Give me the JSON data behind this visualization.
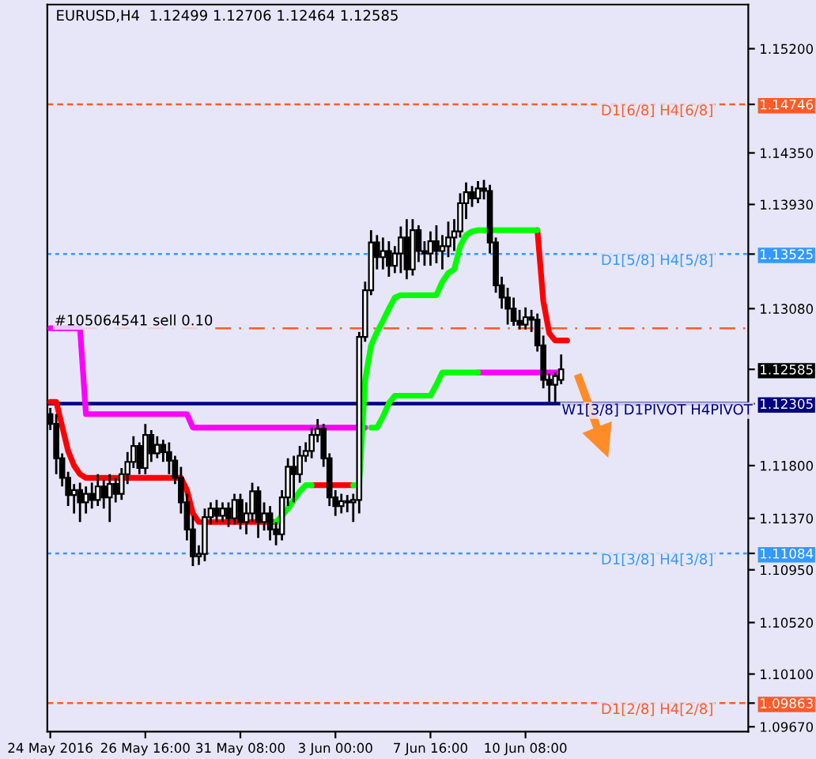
{
  "chart_data": {
    "type": "candlestick",
    "title": "EURUSD,H4  1.12499 1.12706 1.12464 1.12585",
    "categories": [
      "24 May 2016",
      null,
      null,
      null,
      null,
      null,
      null,
      null,
      null,
      null,
      null,
      null,
      null,
      null,
      null,
      null,
      "26 May 16:00",
      null,
      null,
      null,
      null,
      null,
      null,
      null,
      null,
      null,
      null,
      null,
      null,
      null,
      null,
      null,
      "31 May 08:00",
      null,
      null,
      null,
      null,
      null,
      null,
      null,
      null,
      null,
      null,
      null,
      null,
      null,
      null,
      null,
      "3 Jun 00:00",
      null,
      null,
      null,
      null,
      null,
      null,
      null,
      null,
      null,
      null,
      null,
      null,
      null,
      null,
      null,
      "7 Jun 16:00",
      null,
      null,
      null,
      null,
      null,
      null,
      null,
      null,
      null,
      null,
      null,
      null,
      null,
      null,
      null,
      "10 Jun 08:00",
      null,
      null,
      null,
      null,
      null,
      null,
      null,
      null,
      null,
      null,
      null,
      null,
      null,
      null,
      null,
      null,
      null,
      null,
      null,
      null,
      null,
      null,
      null,
      null,
      null,
      null,
      null,
      null,
      null,
      null,
      null,
      null,
      null,
      null,
      null,
      null,
      null
    ],
    "ohlc": [
      [
        1.1222,
        1.1227,
        1.1209,
        1.1214
      ],
      [
        1.1214,
        1.1222,
        1.1173,
        1.1186
      ],
      [
        1.1186,
        1.119,
        1.1163,
        1.117
      ],
      [
        1.117,
        1.1175,
        1.1147,
        1.1156
      ],
      [
        1.1156,
        1.1165,
        1.1141,
        1.116
      ],
      [
        1.116,
        1.1166,
        1.1134,
        1.115
      ],
      [
        1.115,
        1.1163,
        1.1141,
        1.1157
      ],
      [
        1.1157,
        1.1166,
        1.1145,
        1.1152
      ],
      [
        1.1152,
        1.1173,
        1.1147,
        1.1163
      ],
      [
        1.1163,
        1.1168,
        1.1145,
        1.1154
      ],
      [
        1.1154,
        1.1173,
        1.1134,
        1.1165
      ],
      [
        1.1165,
        1.117,
        1.115,
        1.1157
      ],
      [
        1.1157,
        1.1178,
        1.1152,
        1.1173
      ],
      [
        1.1173,
        1.1191,
        1.1165,
        1.1183
      ],
      [
        1.1183,
        1.1204,
        1.1178,
        1.1196
      ],
      [
        1.1196,
        1.1199,
        1.1173,
        1.1178
      ],
      [
        1.1178,
        1.1214,
        1.1173,
        1.1205
      ],
      [
        1.1205,
        1.1209,
        1.1183,
        1.119
      ],
      [
        1.119,
        1.1204,
        1.1186,
        1.1197
      ],
      [
        1.1197,
        1.1201,
        1.1183,
        1.1191
      ],
      [
        1.1191,
        1.1199,
        1.1173,
        1.1184
      ],
      [
        1.1184,
        1.1188,
        1.1165,
        1.117
      ],
      [
        1.117,
        1.1179,
        1.1141,
        1.115
      ],
      [
        1.115,
        1.1157,
        1.1119,
        1.1128
      ],
      [
        1.1128,
        1.1139,
        1.1098,
        1.1106
      ],
      [
        1.1106,
        1.1115,
        1.1099,
        1.1108
      ],
      [
        1.1108,
        1.1145,
        1.1102,
        1.1138
      ],
      [
        1.1138,
        1.115,
        1.1132,
        1.1145
      ],
      [
        1.1145,
        1.1152,
        1.1134,
        1.1139
      ],
      [
        1.1139,
        1.115,
        1.1134,
        1.1145
      ],
      [
        1.1145,
        1.115,
        1.113,
        1.1137
      ],
      [
        1.1137,
        1.1157,
        1.1132,
        1.1152
      ],
      [
        1.1152,
        1.1157,
        1.1128,
        1.1134
      ],
      [
        1.1134,
        1.115,
        1.1124,
        1.1141
      ],
      [
        1.1141,
        1.1166,
        1.1134,
        1.1159
      ],
      [
        1.1159,
        1.1163,
        1.1121,
        1.1134
      ],
      [
        1.1134,
        1.115,
        1.1127,
        1.1141
      ],
      [
        1.1141,
        1.1147,
        1.1119,
        1.1128
      ],
      [
        1.1128,
        1.1134,
        1.1115,
        1.1124
      ],
      [
        1.1124,
        1.116,
        1.1119,
        1.1154
      ],
      [
        1.1154,
        1.1186,
        1.1147,
        1.1179
      ],
      [
        1.1179,
        1.1188,
        1.115,
        1.1173
      ],
      [
        1.1173,
        1.1196,
        1.1166,
        1.1188
      ],
      [
        1.1188,
        1.1199,
        1.1183,
        1.1192
      ],
      [
        1.1192,
        1.1211,
        1.1186,
        1.1205
      ],
      [
        1.1205,
        1.1218,
        1.1199,
        1.121
      ],
      [
        1.121,
        1.1214,
        1.1179,
        1.1186
      ],
      [
        1.1186,
        1.119,
        1.1147,
        1.1154
      ],
      [
        1.1154,
        1.116,
        1.1139,
        1.1147
      ],
      [
        1.1147,
        1.1157,
        1.1141,
        1.1151
      ],
      [
        1.1151,
        1.1156,
        1.1142,
        1.115
      ],
      [
        1.115,
        1.1157,
        1.1134,
        1.1152
      ],
      [
        1.1152,
        1.1289,
        1.1141,
        1.1285
      ],
      [
        1.1285,
        1.133,
        1.1281,
        1.1323
      ],
      [
        1.1323,
        1.1372,
        1.1319,
        1.1362
      ],
      [
        1.1362,
        1.1368,
        1.134,
        1.135
      ],
      [
        1.135,
        1.1366,
        1.134,
        1.1355
      ],
      [
        1.1355,
        1.1363,
        1.1334,
        1.1343
      ],
      [
        1.1343,
        1.1359,
        1.1337,
        1.1353
      ],
      [
        1.1353,
        1.1375,
        1.1337,
        1.1366
      ],
      [
        1.1366,
        1.1381,
        1.1332,
        1.134
      ],
      [
        1.134,
        1.1381,
        1.1335,
        1.1372
      ],
      [
        1.1372,
        1.1376,
        1.1346,
        1.1355
      ],
      [
        1.1355,
        1.1363,
        1.1343,
        1.1353
      ],
      [
        1.1353,
        1.1371,
        1.1343,
        1.1363
      ],
      [
        1.1363,
        1.1376,
        1.1345,
        1.1355
      ],
      [
        1.1355,
        1.1368,
        1.134,
        1.1359
      ],
      [
        1.1359,
        1.1379,
        1.135,
        1.1366
      ],
      [
        1.1366,
        1.1381,
        1.1355,
        1.1371
      ],
      [
        1.1371,
        1.1402,
        1.1366,
        1.1394
      ],
      [
        1.1394,
        1.1411,
        1.1381,
        1.1403
      ],
      [
        1.1403,
        1.1408,
        1.1391,
        1.1398
      ],
      [
        1.1398,
        1.1412,
        1.1394,
        1.1406
      ],
      [
        1.1406,
        1.1413,
        1.1397,
        1.1404
      ],
      [
        1.1404,
        1.1409,
        1.1353,
        1.1362
      ],
      [
        1.1362,
        1.1366,
        1.1321,
        1.1327
      ],
      [
        1.1327,
        1.1334,
        1.1308,
        1.1317
      ],
      [
        1.1317,
        1.1325,
        1.1295,
        1.1308
      ],
      [
        1.1308,
        1.1317,
        1.1294,
        1.1298
      ],
      [
        1.1298,
        1.1307,
        1.1291,
        1.1295
      ],
      [
        1.1295,
        1.1309,
        1.1291,
        1.1301
      ],
      [
        1.1301,
        1.1307,
        1.1289,
        1.1299
      ],
      [
        1.1299,
        1.1304,
        1.1273,
        1.1278
      ],
      [
        1.1278,
        1.1286,
        1.1243,
        1.125
      ],
      [
        1.125,
        1.1255,
        1.1232,
        1.1246
      ],
      [
        1.1246,
        1.1256,
        1.1231,
        1.1253
      ],
      [
        1.12499,
        1.12706,
        1.12464,
        1.12585
      ],
      null,
      null,
      null,
      null,
      null,
      null,
      null,
      null,
      null,
      null,
      null,
      null,
      null,
      null,
      null,
      null,
      null,
      null,
      null,
      null,
      null,
      null,
      null,
      null,
      null,
      null,
      null,
      null,
      null,
      null,
      null
    ],
    "series": [
      {
        "type": "line",
        "color": "#ff00ff",
        "values": [
          1.1292,
          1.1292,
          1.1292,
          1.1292,
          1.1292,
          1.1292,
          1.1222,
          1.1222,
          1.1222,
          1.1222,
          1.1222,
          1.1222,
          1.1222,
          1.1222,
          1.1222,
          1.1222,
          1.1222,
          1.1222,
          1.1222,
          1.1222,
          1.1222,
          1.1222,
          1.1222,
          1.1222,
          1.1211,
          1.1211,
          1.1211,
          1.1211,
          1.1211,
          1.1211,
          1.1211,
          1.1211,
          1.1211,
          1.1211,
          1.1211,
          1.1211,
          1.1211,
          1.1211,
          1.1211,
          1.1211,
          1.1211,
          1.1211,
          1.1211,
          1.1211,
          1.1211,
          1.1211,
          1.1211,
          1.1211,
          1.1211,
          1.1211,
          1.1211,
          1.1211,
          1.1211,
          1.1211,
          null,
          null,
          null,
          null,
          null,
          null,
          null,
          null,
          null,
          null,
          null,
          null,
          null,
          null,
          null,
          null,
          null,
          null,
          1.1256,
          1.1256,
          1.1256,
          1.1256,
          1.1256,
          1.1256,
          1.1256,
          1.1256,
          1.1256,
          1.1256,
          1.1256,
          1.1256,
          1.1256,
          1.1256,
          1.1256,
          null,
          null,
          null,
          null,
          null,
          null,
          null,
          null,
          null,
          null,
          null,
          null,
          null,
          null,
          null,
          null,
          null,
          null,
          null,
          null,
          null,
          null,
          null,
          null,
          null,
          null,
          null,
          null,
          null,
          null,
          null
        ]
      },
      {
        "type": "line",
        "color": "#ff0000",
        "values": [
          1.1232,
          1.1232,
          1.1212,
          1.1192,
          1.118,
          1.1173,
          1.117,
          1.117,
          1.117,
          1.117,
          1.117,
          1.117,
          1.117,
          1.117,
          1.117,
          1.117,
          1.117,
          1.117,
          1.117,
          1.117,
          1.117,
          1.117,
          1.117,
          1.116,
          1.1141,
          1.1134,
          1.1134,
          1.1134,
          1.1134,
          1.1134,
          1.1134,
          1.1134,
          1.1134,
          1.1134,
          1.1134,
          1.1134,
          1.1134,
          1.1134,
          1.1134,
          null,
          null,
          null,
          null,
          null,
          1.1164,
          1.1164,
          1.1164,
          1.1164,
          1.1164,
          1.1164,
          1.1164,
          1.1164,
          null,
          null,
          null,
          null,
          null,
          null,
          null,
          null,
          null,
          null,
          null,
          null,
          null,
          null,
          null,
          null,
          null,
          null,
          null,
          null,
          null,
          null,
          null,
          null,
          null,
          null,
          null,
          null,
          null,
          null,
          1.1372,
          1.1314,
          1.1288,
          1.1282,
          1.1282,
          1.1282,
          null,
          null,
          null,
          null,
          null,
          null,
          null,
          null,
          null,
          null,
          null,
          null,
          null,
          null,
          null,
          null,
          null,
          null,
          null,
          null,
          null,
          null,
          null,
          null,
          null,
          null,
          null,
          null,
          null,
          null
        ]
      },
      {
        "type": "line",
        "color": "#00ff00",
        "values": [
          null,
          null,
          null,
          null,
          null,
          null,
          null,
          null,
          null,
          null,
          null,
          null,
          null,
          null,
          null,
          null,
          null,
          null,
          null,
          null,
          null,
          null,
          null,
          null,
          null,
          null,
          null,
          null,
          null,
          null,
          null,
          null,
          null,
          null,
          null,
          null,
          null,
          null,
          1.1134,
          1.1139,
          1.1145,
          1.1152,
          1.1159,
          1.1164,
          1.1164,
          null,
          null,
          null,
          null,
          null,
          null,
          1.1164,
          1.1164,
          1.125,
          1.1278,
          1.1289,
          1.1298,
          1.1308,
          1.1317,
          1.1319,
          1.1319,
          1.1319,
          1.1319,
          1.1319,
          1.1319,
          1.1319,
          1.133,
          1.1337,
          1.134,
          1.1359,
          1.1368,
          1.1371,
          1.1372,
          1.1372,
          1.1372,
          1.1372,
          1.1372,
          1.1372,
          1.1372,
          1.1372,
          1.1372,
          1.1372,
          1.1372,
          null,
          null,
          null,
          null,
          null,
          null,
          null,
          null,
          null,
          null,
          null,
          null,
          null,
          null,
          null,
          null,
          null,
          null,
          null,
          null,
          null,
          null,
          null,
          null,
          null,
          null,
          null,
          null,
          null,
          null,
          null,
          null,
          null,
          null,
          null
        ]
      },
      {
        "type": "line",
        "color": "#00ff00",
        "values": [
          null,
          null,
          null,
          null,
          null,
          null,
          null,
          null,
          null,
          null,
          null,
          null,
          null,
          null,
          null,
          null,
          null,
          null,
          null,
          null,
          null,
          null,
          null,
          null,
          null,
          null,
          null,
          null,
          null,
          null,
          null,
          null,
          null,
          null,
          null,
          null,
          null,
          null,
          null,
          null,
          null,
          null,
          null,
          null,
          null,
          null,
          null,
          null,
          null,
          null,
          null,
          null,
          null,
          null,
          1.1211,
          1.1211,
          1.122,
          1.1231,
          1.1237,
          1.1237,
          1.1237,
          1.1237,
          1.1237,
          1.1237,
          1.1237,
          1.1246,
          1.1256,
          1.1256,
          1.1256,
          1.1256,
          1.1256,
          1.1256,
          1.1256,
          null,
          null,
          null,
          null,
          null,
          null,
          null,
          null,
          null,
          null,
          null,
          null,
          null,
          null,
          null,
          null,
          null,
          null,
          null,
          null,
          null,
          null,
          null,
          null,
          null,
          null,
          null,
          null,
          null,
          null,
          null,
          null,
          null,
          null,
          null,
          null,
          null,
          null,
          null,
          null,
          null,
          null,
          null,
          null,
          null
        ]
      }
    ],
    "ylim": [
      1.0963,
      1.1556
    ],
    "yticks": [
      {
        "value": 1.152,
        "label": "1.15200"
      },
      {
        "value": 1.14746,
        "label": "1.14746"
      },
      {
        "value": 1.1435,
        "label": "1.14350"
      },
      {
        "value": 1.1393,
        "label": "1.13930"
      },
      {
        "value": 1.13525,
        "label": "1.13525"
      },
      {
        "value": 1.1308,
        "label": "1.13080"
      },
      {
        "value": 1.12585,
        "label": "1.12585"
      },
      {
        "value": 1.12305,
        "label": "1.12305"
      },
      {
        "value": 1.118,
        "label": "1.11800"
      },
      {
        "value": 1.1137,
        "label": "1.11370"
      },
      {
        "value": 1.11084,
        "label": "1.11084"
      },
      {
        "value": 1.1095,
        "label": "1.10950"
      },
      {
        "value": 1.1052,
        "label": "1.10520"
      },
      {
        "value": 1.101,
        "label": "1.10100"
      },
      {
        "value": 1.09863,
        "label": "1.09863"
      },
      {
        "value": 1.0967,
        "label": "1.09670"
      }
    ],
    "ref_lines": [
      {
        "axis": "y",
        "value": 1.14746,
        "label": "D1[6/8] H4[6/8]",
        "color": "#ff5a28",
        "line_style": "dashed"
      },
      {
        "axis": "y",
        "value": 1.13525,
        "label": "D1[5/8] H4[5/8]",
        "color": "#3399ff",
        "line_style": "dotted"
      },
      {
        "axis": "y",
        "value": 1.1292,
        "label": "#105064541 sell 0.10",
        "color": "#ff5a28",
        "line_style": "dashdot"
      },
      {
        "axis": "y",
        "value": 1.12305,
        "label": "W1[3/8] D1PIVOT H4PIVOT",
        "color": "#000080",
        "line_style": "solid"
      },
      {
        "axis": "y",
        "value": 1.11084,
        "label": "D1[3/8] H4[3/8]",
        "color": "#3399ff",
        "line_style": "dotted"
      },
      {
        "axis": "y",
        "value": 1.09863,
        "label": "D1[2/8] H4[2/8]",
        "color": "#ff5a28",
        "line_style": "dashed"
      }
    ]
  }
}
